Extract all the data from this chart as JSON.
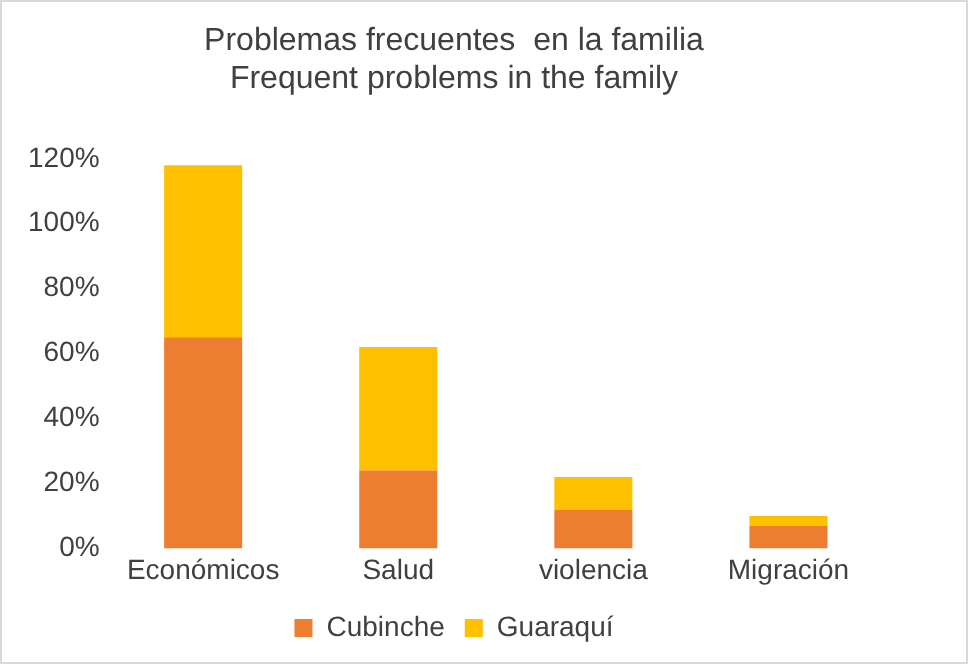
{
  "chart_data": {
    "type": "bar",
    "title": [
      "Problemas frecuentes  en la familia",
      "Frequent problems in the family"
    ],
    "categories": [
      "Económicos",
      "Salud",
      "violencia",
      "Migración"
    ],
    "series": [
      {
        "name": "Cubinche",
        "color": "#ed7d31",
        "values": [
          65,
          24,
          12,
          7
        ]
      },
      {
        "name": "Guaraquí",
        "color": "#ffc000",
        "values": [
          53,
          38,
          10,
          3
        ]
      }
    ],
    "stacked": true,
    "ylim": [
      0,
      120
    ],
    "yticks": [
      {
        "value": 0,
        "label": "0%"
      },
      {
        "value": 20,
        "label": "20%"
      },
      {
        "value": 40,
        "label": "40%"
      },
      {
        "value": 60,
        "label": "60%"
      },
      {
        "value": 80,
        "label": "80%"
      },
      {
        "value": 100,
        "label": "100%"
      },
      {
        "value": 120,
        "label": "120%"
      }
    ],
    "grid": false,
    "legend": "bottom"
  }
}
